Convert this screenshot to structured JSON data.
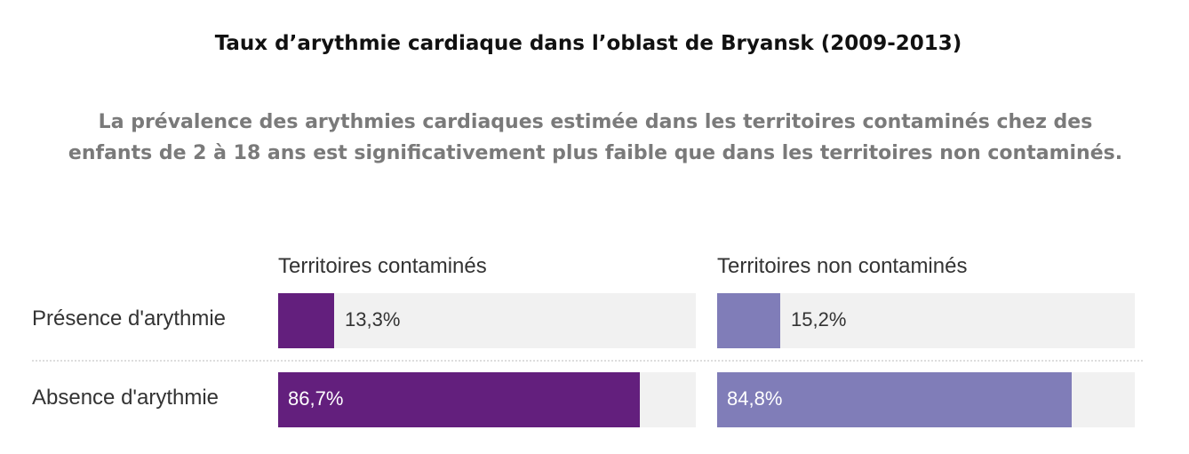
{
  "chart_data": {
    "type": "bar",
    "title": "Taux d’arythmie cardiaque dans l’oblast de Bryansk (2009-2013)",
    "subtitle": [
      "La prévalence des arythmies cardiaques estimée dans les territoires contaminés chez des",
      "enfants de 2 à 18 ans est significativement plus faible que dans les territoires non contaminés."
    ],
    "categories": [
      "Présence d'arythmie",
      "Absence d'arythmie"
    ],
    "xlim": [
      0,
      100
    ],
    "series": [
      {
        "name": "Territoires contaminés",
        "color": "#631f7d",
        "values": [
          13.3,
          86.7
        ],
        "labels": [
          "13,3%",
          "86,7%"
        ]
      },
      {
        "name": "Territoires non contaminés",
        "color": "#807db8",
        "values": [
          15.2,
          84.8
        ],
        "labels": [
          "15,2%",
          "84,8%"
        ]
      }
    ]
  }
}
